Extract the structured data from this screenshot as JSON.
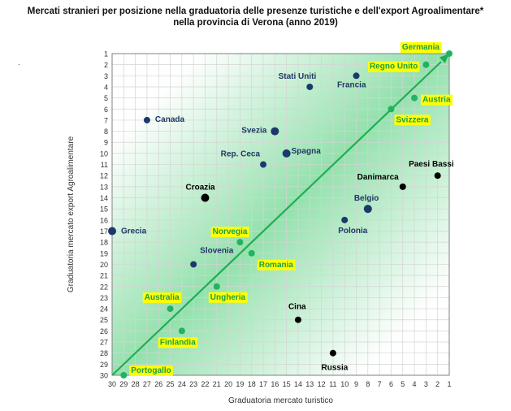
{
  "title_line1": "Mercati stranieri per posizione nella graduatoria delle presenze turistiche e dell'export Agroalimentare*",
  "title_line2": "nella provincia di Verona (anno 2019)",
  "stray_mark": ".",
  "colors": {
    "diagonal": "#1fae55",
    "green_point": "#22b35e",
    "navy_point": "#1b3a6b",
    "black_point": "#000000",
    "label_navy": "#1f3864",
    "label_black": "#000000",
    "label_green": "#19a04a",
    "highlight": "#ffff00",
    "band": "#3cc86a"
  },
  "chart_data": {
    "type": "scatter",
    "xlabel": "Graduatoria mercato turistico",
    "ylabel": "Graduatoria mercato export Agroalimentare",
    "xlim": [
      30,
      1
    ],
    "ylim": [
      30,
      1
    ],
    "x_reversed": true,
    "y_reversed": true,
    "grid": true,
    "diagonal_arrow": true,
    "xticks": [
      30,
      29,
      28,
      27,
      26,
      25,
      24,
      23,
      22,
      21,
      20,
      19,
      18,
      17,
      16,
      15,
      14,
      13,
      12,
      11,
      10,
      9,
      8,
      7,
      6,
      5,
      4,
      3,
      2,
      1
    ],
    "yticks": [
      1,
      2,
      3,
      4,
      5,
      6,
      7,
      8,
      9,
      10,
      11,
      12,
      13,
      14,
      15,
      16,
      17,
      18,
      19,
      20,
      21,
      22,
      23,
      24,
      25,
      26,
      27,
      28,
      29,
      30
    ],
    "points": [
      {
        "label": "Germania",
        "x": 1,
        "y": 1,
        "group": "green"
      },
      {
        "label": "Regno Unito",
        "x": 3,
        "y": 2,
        "group": "green"
      },
      {
        "label": "Stati Uniti",
        "x": 13,
        "y": 4,
        "group": "navy"
      },
      {
        "label": "Francia",
        "x": 9,
        "y": 3,
        "group": "navy"
      },
      {
        "label": "Austria",
        "x": 4,
        "y": 5,
        "group": "green"
      },
      {
        "label": "Svizzera",
        "x": 6,
        "y": 6,
        "group": "green"
      },
      {
        "label": "Canada",
        "x": 27,
        "y": 7,
        "group": "navy"
      },
      {
        "label": "Svezia",
        "x": 16,
        "y": 8,
        "group": "navy"
      },
      {
        "label": "Spagna",
        "x": 15,
        "y": 10,
        "group": "navy"
      },
      {
        "label": "Rep. Ceca",
        "x": 17,
        "y": 11,
        "group": "navy"
      },
      {
        "label": "Paesi Bassi",
        "x": 2,
        "y": 12,
        "group": "black"
      },
      {
        "label": "Danimarca",
        "x": 5,
        "y": 13,
        "group": "black"
      },
      {
        "label": "Croazia",
        "x": 22,
        "y": 14,
        "group": "black"
      },
      {
        "label": "Belgio",
        "x": 8,
        "y": 15,
        "group": "navy"
      },
      {
        "label": "Polonia",
        "x": 10,
        "y": 16,
        "group": "navy"
      },
      {
        "label": "Grecia",
        "x": 30,
        "y": 17,
        "group": "navy"
      },
      {
        "label": "Norvegia",
        "x": 19,
        "y": 18,
        "group": "green"
      },
      {
        "label": "Romania",
        "x": 18,
        "y": 19,
        "group": "green"
      },
      {
        "label": "Slovenia",
        "x": 23,
        "y": 20,
        "group": "navy"
      },
      {
        "label": "Ungheria",
        "x": 21,
        "y": 22,
        "group": "green"
      },
      {
        "label": "Australia",
        "x": 25,
        "y": 24,
        "group": "green"
      },
      {
        "label": "Cina",
        "x": 14,
        "y": 25,
        "group": "black"
      },
      {
        "label": "Finlandia",
        "x": 24,
        "y": 26,
        "group": "green"
      },
      {
        "label": "Russia",
        "x": 11,
        "y": 28,
        "group": "black"
      },
      {
        "label": "Portogallo",
        "x": 29,
        "y": 30,
        "group": "green"
      }
    ]
  }
}
